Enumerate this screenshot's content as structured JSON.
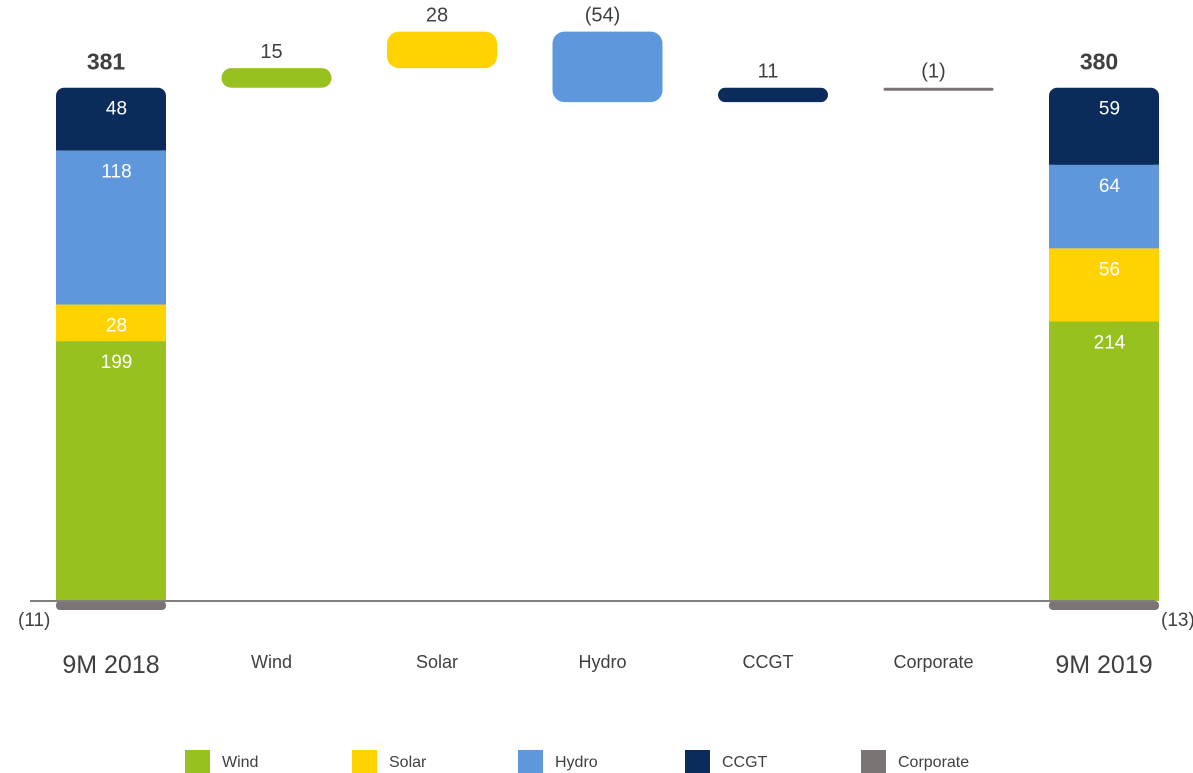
{
  "chart_data": {
    "type": "waterfall",
    "colors": {
      "Wind": "#96c11f",
      "Solar": "#ffd200",
      "Hydro": "#5f97dc",
      "CCGT": "#0b2c5a",
      "Corporate": "#7b7474"
    },
    "start": {
      "category": "9M 2018",
      "total_label": "381",
      "segments": [
        {
          "name": "Wind",
          "value": 199,
          "label": "199"
        },
        {
          "name": "Solar",
          "value": 28,
          "label": "28"
        },
        {
          "name": "Hydro",
          "value": 118,
          "label": "118"
        },
        {
          "name": "CCGT",
          "value": 48,
          "label": "48"
        }
      ],
      "negative": {
        "name": "Corporate",
        "value": -11,
        "label": "(11)"
      }
    },
    "deltas": [
      {
        "category": "Wind",
        "series": "Wind",
        "value": 15,
        "label": "15"
      },
      {
        "category": "Solar",
        "series": "Solar",
        "value": 28,
        "label": "28"
      },
      {
        "category": "Hydro",
        "series": "Hydro",
        "value": -54,
        "label": "(54)"
      },
      {
        "category": "CCGT",
        "series": "CCGT",
        "value": 11,
        "label": "11"
      },
      {
        "category": "Corporate",
        "series": "Corporate",
        "value": -1,
        "label": "(1)"
      }
    ],
    "end": {
      "category": "9M 2019",
      "total_label": "380",
      "segments": [
        {
          "name": "Wind",
          "value": 214,
          "label": "214"
        },
        {
          "name": "Solar",
          "value": 56,
          "label": "56"
        },
        {
          "name": "Hydro",
          "value": 64,
          "label": "64"
        },
        {
          "name": "CCGT",
          "value": 59,
          "label": "59"
        }
      ],
      "negative": {
        "name": "Corporate",
        "value": -13,
        "label": "(13)"
      }
    },
    "legend": [
      "Wind",
      "Solar",
      "Hydro",
      "CCGT",
      "Corporate"
    ],
    "legend_position": "bottom"
  }
}
